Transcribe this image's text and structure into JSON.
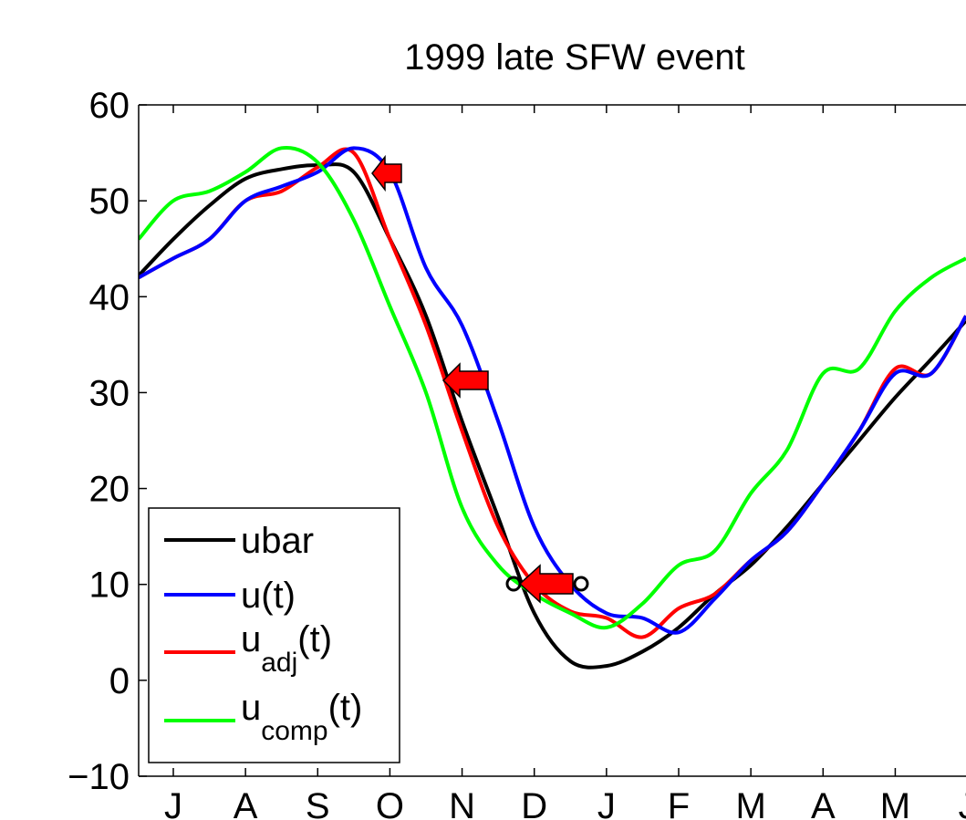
{
  "chart_data": {
    "type": "line",
    "title": "1999 late SFW event",
    "x": [
      -0.48,
      0,
      0.5,
      1,
      1.5,
      2,
      2.5,
      3,
      3.5,
      4,
      4.5,
      5,
      5.5,
      6,
      6.5,
      7,
      7.5,
      8,
      8.5,
      9,
      9.5,
      10,
      10.5,
      10.98
    ],
    "xlim": [
      -0.48,
      10.98
    ],
    "xticks": [
      {
        "value": 0,
        "label": "J"
      },
      {
        "value": 1,
        "label": "A"
      },
      {
        "value": 2,
        "label": "S"
      },
      {
        "value": 3,
        "label": "O"
      },
      {
        "value": 4,
        "label": "N"
      },
      {
        "value": 5,
        "label": "D"
      },
      {
        "value": 6,
        "label": "J"
      },
      {
        "value": 7,
        "label": "F"
      },
      {
        "value": 8,
        "label": "M"
      },
      {
        "value": 9,
        "label": "A"
      },
      {
        "value": 10,
        "label": "M"
      },
      {
        "value": 11,
        "label": "J"
      }
    ],
    "ylim": [
      -10,
      60
    ],
    "yticks": [
      {
        "value": -10,
        "label": "−10"
      },
      0,
      10,
      20,
      30,
      40,
      50,
      60
    ],
    "legend": "lower left",
    "series": [
      {
        "name": "ubar",
        "color": "#000000",
        "values": [
          42.2,
          46,
          49.5,
          52.3,
          53.3,
          53.7,
          53,
          46,
          38,
          27,
          17,
          7,
          2,
          1.5,
          3,
          5.5,
          9,
          12,
          16,
          20.5,
          25,
          29.5,
          33.5,
          37.5
        ]
      },
      {
        "name": "u(t)",
        "color": "#0000ff",
        "values": [
          42,
          44,
          46,
          50,
          51.5,
          53,
          55.5,
          53,
          43,
          37,
          27,
          16,
          10,
          7,
          6.5,
          5,
          8.5,
          12.5,
          15.5,
          20.5,
          26,
          32,
          32,
          38
        ]
      },
      {
        "name": "u_adj(t)",
        "color": "#ff0000",
        "values": [
          42,
          44,
          46,
          50,
          51,
          53.5,
          55,
          46,
          37,
          26,
          16,
          10,
          7.2,
          6.5,
          4.5,
          7.5,
          9,
          12.5,
          15.5,
          20.5,
          26,
          32.5,
          32,
          38
        ]
      },
      {
        "name": "u_comp(t)",
        "color": "#00ff00",
        "values": [
          46,
          50,
          51,
          53,
          55.5,
          54,
          48,
          39,
          30,
          18,
          12,
          9,
          7,
          5.5,
          8,
          12,
          13.5,
          19.5,
          24,
          32,
          32.5,
          38.5,
          42,
          44
        ]
      }
    ]
  }
}
